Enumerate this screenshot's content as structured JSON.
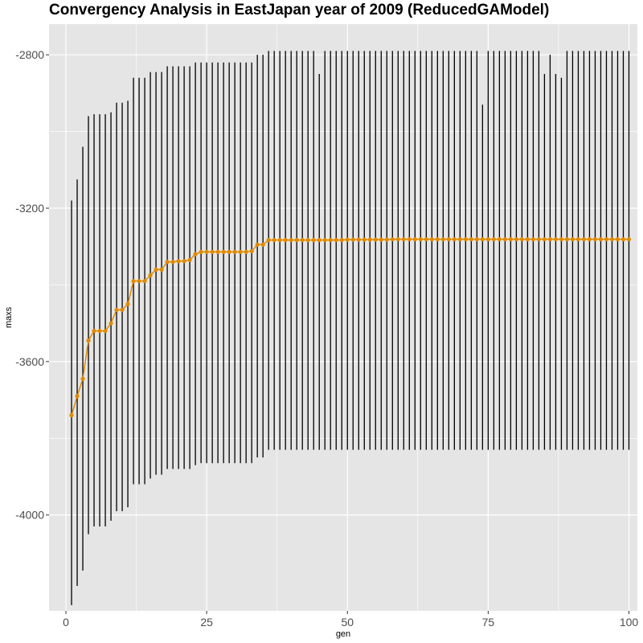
{
  "chart_data": {
    "type": "line",
    "title": "Convergency Analysis in  EastJapan year of 2009 (ReducedGAModel)",
    "xlabel": "gen",
    "ylabel": "maxs",
    "xlim": [
      -3,
      101.5
    ],
    "ylim": [
      -4250,
      -2720
    ],
    "x_ticks": [
      0,
      25,
      50,
      75,
      100
    ],
    "y_ticks": [
      -4000,
      -3600,
      -3200,
      -2800
    ],
    "x_tick_labels": [
      "0",
      "25",
      "50",
      "75",
      "100"
    ],
    "y_tick_labels": [
      "-4000",
      "-3600",
      "-3200",
      "-2800"
    ],
    "grid": true,
    "colors": {
      "panel": "#e5e5e5",
      "grid": "#ffffff",
      "line": "#e08a00",
      "range": "#000000"
    },
    "series": [
      {
        "x": [
          1,
          2,
          3,
          4,
          5,
          6,
          7,
          8,
          9,
          10,
          11,
          12,
          13,
          14,
          15,
          16,
          17,
          18,
          19,
          20,
          21,
          22,
          23,
          24,
          25,
          26,
          27,
          28,
          29,
          30,
          31,
          32,
          33,
          34,
          35,
          36,
          37,
          38,
          39,
          40,
          41,
          42,
          43,
          44,
          45,
          46,
          47,
          48,
          49,
          50,
          51,
          52,
          53,
          54,
          55,
          56,
          57,
          58,
          59,
          60,
          61,
          62,
          63,
          64,
          65,
          66,
          67,
          68,
          69,
          70,
          71,
          72,
          73,
          74,
          75,
          76,
          77,
          78,
          79,
          80,
          81,
          82,
          83,
          84,
          85,
          86,
          87,
          88,
          89,
          90,
          91,
          92,
          93,
          94,
          95,
          96,
          97,
          98,
          99,
          100
        ],
        "values": [
          -3740,
          -3690,
          -3645,
          -3545,
          -3520,
          -3520,
          -3520,
          -3500,
          -3465,
          -3465,
          -3450,
          -3390,
          -3390,
          -3390,
          -3375,
          -3360,
          -3360,
          -3340,
          -3340,
          -3338,
          -3338,
          -3335,
          -3320,
          -3314,
          -3314,
          -3314,
          -3314,
          -3314,
          -3314,
          -3314,
          -3314,
          -3314,
          -3312,
          -3295,
          -3295,
          -3283,
          -3283,
          -3283,
          -3283,
          -3283,
          -3283,
          -3283,
          -3283,
          -3283,
          -3283,
          -3283,
          -3283,
          -3283,
          -3283,
          -3282,
          -3282,
          -3282,
          -3282,
          -3282,
          -3282,
          -3282,
          -3282,
          -3281,
          -3281,
          -3281,
          -3281,
          -3281,
          -3281,
          -3281,
          -3281,
          -3281,
          -3281,
          -3281,
          -3281,
          -3281,
          -3281,
          -3281,
          -3281,
          -3281,
          -3281,
          -3281,
          -3281,
          -3281,
          -3281,
          -3281,
          -3281,
          -3281,
          -3281,
          -3281,
          -3281,
          -3281,
          -3281,
          -3281,
          -3281,
          -3281,
          -3281,
          -3281,
          -3281,
          -3281,
          -3281,
          -3281,
          -3281,
          -3281,
          -3281,
          -3281
        ]
      },
      {
        "x": [
          1,
          2,
          3,
          4,
          5,
          6,
          7,
          8,
          9,
          10,
          11,
          12,
          13,
          14,
          15,
          16,
          17,
          18,
          19,
          20,
          21,
          22,
          23,
          24,
          25,
          26,
          27,
          28,
          29,
          30,
          31,
          32,
          33,
          34,
          35,
          36,
          37,
          38,
          39,
          40,
          41,
          42,
          43,
          44,
          45,
          46,
          47,
          48,
          49,
          50,
          51,
          52,
          53,
          54,
          55,
          56,
          57,
          58,
          59,
          60,
          61,
          62,
          63,
          64,
          65,
          66,
          67,
          68,
          69,
          70,
          71,
          72,
          73,
          74,
          75,
          76,
          77,
          78,
          79,
          80,
          81,
          82,
          83,
          84,
          85,
          86,
          87,
          88,
          89,
          90,
          91,
          92,
          93,
          94,
          95,
          96,
          97,
          98,
          99,
          100
        ],
        "values": [
          -3180,
          -3125,
          -3040,
          -2960,
          -2955,
          -2955,
          -2955,
          -2950,
          -2925,
          -2925,
          -2920,
          -2860,
          -2860,
          -2860,
          -2845,
          -2845,
          -2845,
          -2830,
          -2830,
          -2830,
          -2830,
          -2830,
          -2820,
          -2820,
          -2820,
          -2820,
          -2820,
          -2820,
          -2820,
          -2820,
          -2820,
          -2820,
          -2820,
          -2800,
          -2800,
          -2790,
          -2790,
          -2790,
          -2790,
          -2790,
          -2790,
          -2790,
          -2790,
          -2790,
          -2850,
          -2790,
          -2790,
          -2790,
          -2790,
          -2790,
          -2790,
          -2790,
          -2790,
          -2790,
          -2790,
          -2790,
          -2790,
          -2790,
          -2790,
          -2790,
          -2790,
          -2790,
          -2790,
          -2790,
          -2790,
          -2790,
          -2790,
          -2790,
          -2790,
          -2790,
          -2790,
          -2790,
          -2790,
          -2930,
          -2790,
          -2790,
          -2790,
          -2790,
          -2790,
          -2790,
          -2790,
          -2790,
          -2790,
          -2790,
          -2850,
          -2800,
          -2850,
          -2860,
          -2790,
          -2790,
          -2790,
          -2790,
          -2790,
          -2790,
          -2790,
          -2790,
          -2790,
          -2790,
          -2790,
          -2790
        ]
      },
      {
        "x": [
          1,
          2,
          3,
          4,
          5,
          6,
          7,
          8,
          9,
          10,
          11,
          12,
          13,
          14,
          15,
          16,
          17,
          18,
          19,
          20,
          21,
          22,
          23,
          24,
          25,
          26,
          27,
          28,
          29,
          30,
          31,
          32,
          33,
          34,
          35,
          36,
          37,
          38,
          39,
          40,
          41,
          42,
          43,
          44,
          45,
          46,
          47,
          48,
          49,
          50,
          51,
          52,
          53,
          54,
          55,
          56,
          57,
          58,
          59,
          60,
          61,
          62,
          63,
          64,
          65,
          66,
          67,
          68,
          69,
          70,
          71,
          72,
          73,
          74,
          75,
          76,
          77,
          78,
          79,
          80,
          81,
          82,
          83,
          84,
          85,
          86,
          87,
          88,
          89,
          90,
          91,
          92,
          93,
          94,
          95,
          96,
          97,
          98,
          99,
          100
        ],
        "values": [
          -4235,
          -4185,
          -4145,
          -4050,
          -4030,
          -4030,
          -4030,
          -4015,
          -3990,
          -3990,
          -3980,
          -3920,
          -3920,
          -3920,
          -3905,
          -3895,
          -3895,
          -3880,
          -3880,
          -3880,
          -3880,
          -3880,
          -3870,
          -3865,
          -3865,
          -3865,
          -3865,
          -3865,
          -3865,
          -3865,
          -3865,
          -3865,
          -3865,
          -3850,
          -3850,
          -3830,
          -3830,
          -3830,
          -3830,
          -3830,
          -3830,
          -3830,
          -3830,
          -3830,
          -3830,
          -3830,
          -3830,
          -3830,
          -3830,
          -3830,
          -3830,
          -3830,
          -3830,
          -3830,
          -3830,
          -3830,
          -3830,
          -3830,
          -3830,
          -3830,
          -3830,
          -3830,
          -3830,
          -3830,
          -3830,
          -3830,
          -3830,
          -3830,
          -3830,
          -3830,
          -3830,
          -3830,
          -3830,
          -3830,
          -3830,
          -3830,
          -3830,
          -3830,
          -3830,
          -3830,
          -3830,
          -3830,
          -3830,
          -3830,
          -3830,
          -3830,
          -3830,
          -3830,
          -3830,
          -3830,
          -3830,
          -3830,
          -3830,
          -3830,
          -3830,
          -3830,
          -3830,
          -3830,
          -3830,
          -3830
        ]
      }
    ]
  }
}
